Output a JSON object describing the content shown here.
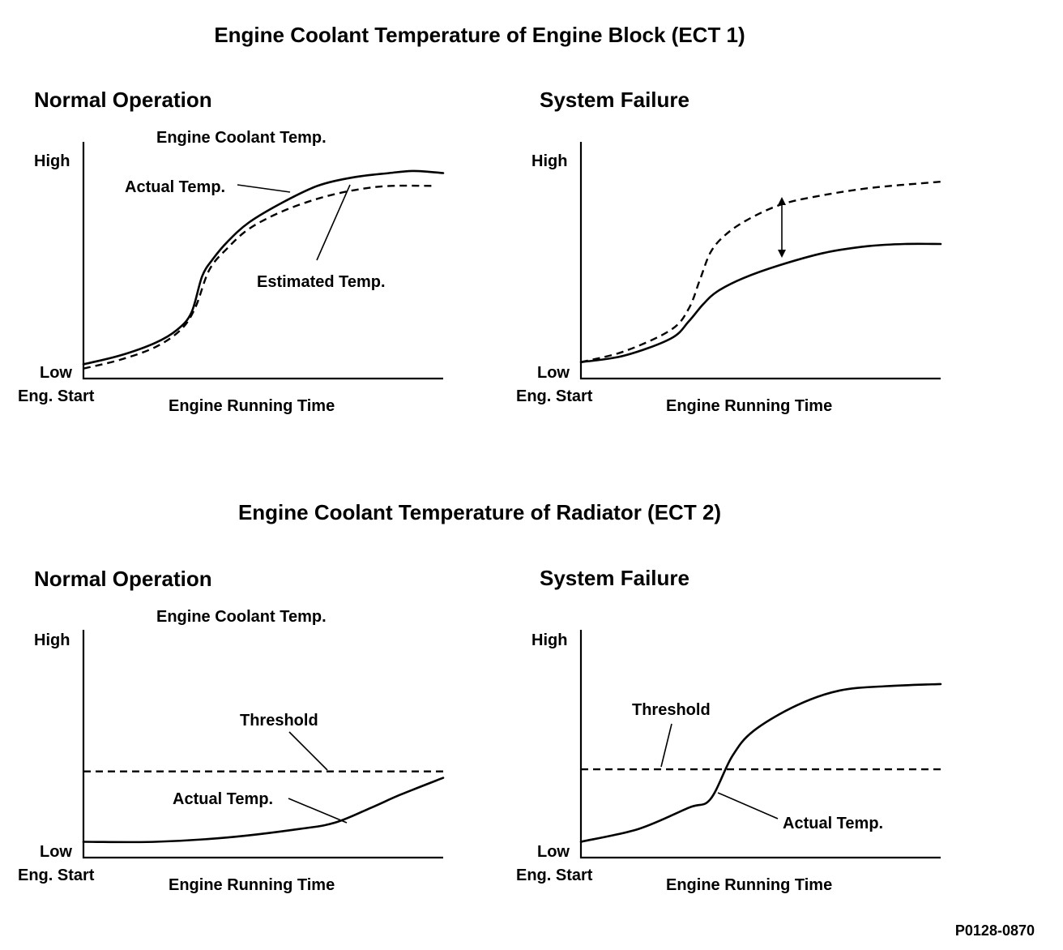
{
  "section_titles": {
    "ect1": "Engine Coolant Temperature of Engine Block (ECT 1)",
    "ect2": "Engine Coolant Temperature of Radiator (ECT 2)"
  },
  "labels": {
    "normal_operation": "Normal Operation",
    "system_failure": "System Failure",
    "y_title": "Engine Coolant Temp.",
    "high": "High",
    "low": "Low",
    "eng_start": "Eng. Start",
    "x_title": "Engine Running Time",
    "actual_temp": "Actual Temp.",
    "estimated_temp": "Estimated Temp.",
    "threshold": "Threshold"
  },
  "figure_id": "P0128-0870",
  "chart_data": [
    {
      "type": "line",
      "title": "Normal Operation",
      "xlabel": "Engine Running Time",
      "ylabel": "Engine Coolant Temp.",
      "x_ticks": [
        "Eng. Start"
      ],
      "y_ticks": [
        "Low",
        "High"
      ],
      "xlim": [
        0,
        1
      ],
      "ylim": [
        0,
        1
      ],
      "series": [
        {
          "name": "Actual Temp.",
          "style": "solid",
          "x": [
            0,
            0.1,
            0.2,
            0.26,
            0.3,
            0.33,
            0.36,
            0.4,
            0.46,
            0.55,
            0.65,
            0.75,
            0.85,
            0.92,
            1.0
          ],
          "y": [
            0.04,
            0.08,
            0.14,
            0.2,
            0.28,
            0.45,
            0.53,
            0.61,
            0.7,
            0.79,
            0.87,
            0.91,
            0.93,
            0.94,
            0.93
          ]
        },
        {
          "name": "Estimated Temp.",
          "style": "dashed",
          "x": [
            0,
            0.1,
            0.2,
            0.27,
            0.31,
            0.35,
            0.4,
            0.46,
            0.55,
            0.65,
            0.75,
            0.85,
            0.98
          ],
          "y": [
            0.02,
            0.06,
            0.12,
            0.2,
            0.3,
            0.48,
            0.58,
            0.67,
            0.75,
            0.81,
            0.85,
            0.87,
            0.87
          ]
        }
      ]
    },
    {
      "type": "line",
      "title": "System Failure",
      "xlabel": "Engine Running Time",
      "x_ticks": [
        "Eng. Start"
      ],
      "y_ticks": [
        "Low",
        "High"
      ],
      "xlim": [
        0,
        1
      ],
      "ylim": [
        0,
        1
      ],
      "series": [
        {
          "style": "dashed",
          "x": [
            0,
            0.12,
            0.25,
            0.3,
            0.33,
            0.36,
            0.4,
            0.46,
            0.55,
            0.65,
            0.8,
            1.0
          ],
          "y": [
            0.05,
            0.1,
            0.2,
            0.3,
            0.43,
            0.56,
            0.64,
            0.71,
            0.78,
            0.82,
            0.86,
            0.89
          ]
        },
        {
          "style": "solid",
          "x": [
            0,
            0.12,
            0.25,
            0.3,
            0.34,
            0.38,
            0.45,
            0.55,
            0.68,
            0.8,
            0.9,
            1.0
          ],
          "y": [
            0.05,
            0.08,
            0.16,
            0.24,
            0.32,
            0.38,
            0.44,
            0.5,
            0.56,
            0.59,
            0.6,
            0.6
          ]
        }
      ],
      "annotations": [
        {
          "type": "double-arrow",
          "x": 0.55,
          "between": "dashed-solid"
        }
      ]
    },
    {
      "type": "line",
      "title": "Normal Operation",
      "xlabel": "Engine Running Time",
      "ylabel": "Engine Coolant Temp.",
      "x_ticks": [
        "Eng. Start"
      ],
      "y_ticks": [
        "Low",
        "High"
      ],
      "xlim": [
        0,
        1
      ],
      "ylim": [
        0,
        1
      ],
      "series": [
        {
          "name": "Actual Temp.",
          "style": "solid",
          "x": [
            0,
            0.2,
            0.4,
            0.6,
            0.7,
            0.8,
            0.88,
            1.0
          ],
          "y": [
            0.04,
            0.04,
            0.06,
            0.1,
            0.13,
            0.2,
            0.26,
            0.34
          ]
        },
        {
          "name": "Threshold",
          "style": "dashed",
          "x": [
            0,
            1
          ],
          "y": [
            0.37,
            0.37
          ]
        }
      ]
    },
    {
      "type": "line",
      "title": "System Failure",
      "xlabel": "Engine Running Time",
      "x_ticks": [
        "Eng. Start"
      ],
      "y_ticks": [
        "Low",
        "High"
      ],
      "xlim": [
        0,
        1
      ],
      "ylim": [
        0,
        1
      ],
      "series": [
        {
          "name": "Actual Temp.",
          "style": "solid",
          "x": [
            0,
            0.16,
            0.3,
            0.36,
            0.42,
            0.48,
            0.6,
            0.72,
            0.85,
            1.0
          ],
          "y": [
            0.04,
            0.1,
            0.2,
            0.24,
            0.44,
            0.56,
            0.68,
            0.75,
            0.77,
            0.78
          ]
        },
        {
          "name": "Threshold",
          "style": "dashed",
          "x": [
            0,
            1
          ],
          "y": [
            0.38,
            0.38
          ]
        }
      ]
    }
  ]
}
